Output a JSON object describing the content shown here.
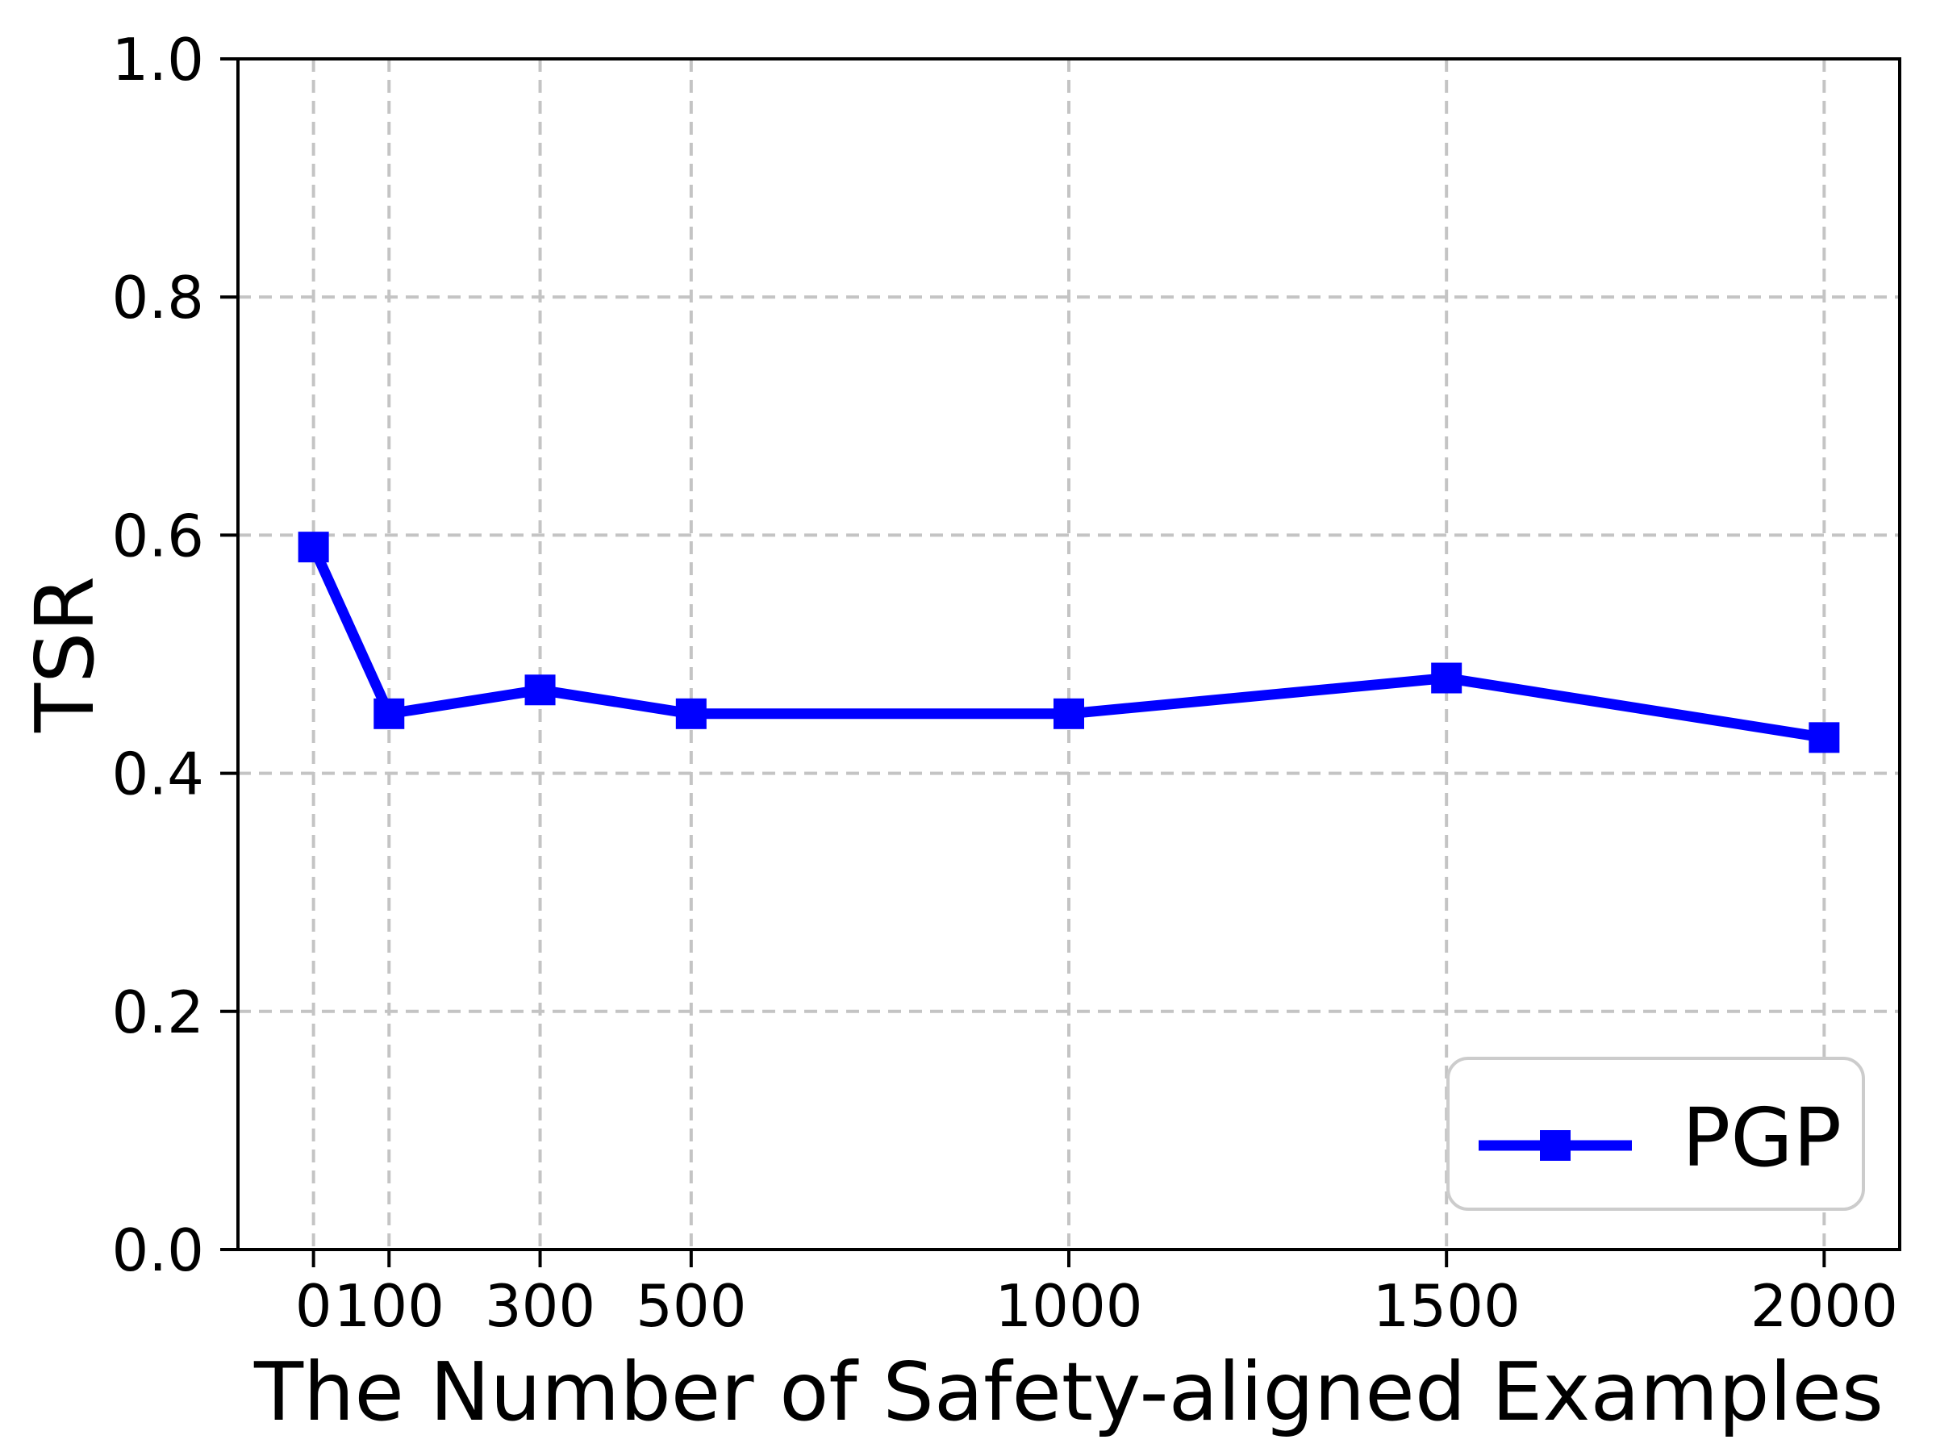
{
  "figure": {
    "background": "#ffffff"
  },
  "chart_data": {
    "type": "line",
    "title": "",
    "xlabel": "The Number of Safety-aligned Examples",
    "ylabel": "TSR",
    "x": [
      0,
      100,
      300,
      500,
      1000,
      1500,
      2000
    ],
    "series": [
      {
        "name": "PGP",
        "values": [
          0.59,
          0.45,
          0.47,
          0.45,
          0.45,
          0.48,
          0.43
        ],
        "color": "#0000ff",
        "marker": "square"
      }
    ],
    "xlim": [
      -100,
      2100
    ],
    "ylim": [
      0.0,
      1.0
    ],
    "xticks": [
      0,
      100,
      300,
      500,
      1000,
      1500,
      2000
    ],
    "xtick_labels": [
      "0",
      "100",
      "300",
      "500",
      "1000",
      "1500",
      "2000"
    ],
    "yticks": [
      0.0,
      0.2,
      0.4,
      0.6,
      0.8,
      1.0
    ],
    "ytick_labels": [
      "0.0",
      "0.2",
      "0.4",
      "0.6",
      "0.8",
      "1.0"
    ],
    "grid": true,
    "grid_style": "dashed",
    "legend": {
      "position": "lower right",
      "entries": [
        "PGP"
      ]
    }
  },
  "colors": {
    "series": "#0000ff",
    "grid": "#c4c4c4",
    "spine": "#000000",
    "tick": "#000000",
    "legend_border": "#cccccc",
    "legend_background": "#ffffff"
  }
}
